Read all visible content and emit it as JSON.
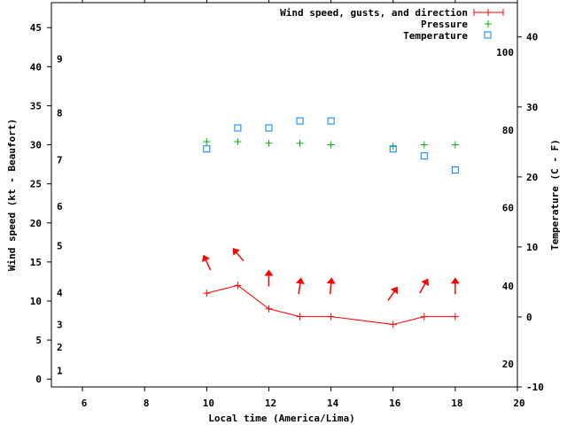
{
  "chart_data": {
    "type": "line",
    "title": "",
    "xlabel": "Local time (America/Lima)",
    "ylabel": "Wind speed (kt - Beaufort)",
    "y2label": "Temperature (C - F)",
    "xlim": [
      5,
      20
    ],
    "ylim": [
      -1,
      48.2
    ],
    "y2lim": [
      -10,
      44.9
    ],
    "grid": false,
    "legend_position": "top-right",
    "x_ticks": [
      6,
      8,
      10,
      12,
      14,
      16,
      18,
      20
    ],
    "y_ticks": [
      0,
      5,
      10,
      15,
      20,
      25,
      30,
      35,
      40,
      45
    ],
    "y2_ticks": [
      -10,
      0,
      10,
      20,
      30,
      40
    ],
    "beaufort_labels": [
      {
        "label": "1",
        "kt": 1.1
      },
      {
        "label": "2",
        "kt": 4.1
      },
      {
        "label": "3",
        "kt": 7.0
      },
      {
        "label": "4",
        "kt": 11.1
      },
      {
        "label": "5",
        "kt": 17.1
      },
      {
        "label": "6",
        "kt": 22.1
      },
      {
        "label": "7",
        "kt": 28.1
      },
      {
        "label": "8",
        "kt": 34.1
      },
      {
        "label": "9",
        "kt": 41.0
      }
    ],
    "fahrenheit_labels": [
      {
        "label": "20",
        "c": -6.7
      },
      {
        "label": "40",
        "c": 4.4
      },
      {
        "label": "60",
        "c": 15.6
      },
      {
        "label": "80",
        "c": 26.7
      },
      {
        "label": "100",
        "c": 37.8
      }
    ],
    "series": [
      {
        "name": "Wind speed, gusts, and direction",
        "color": "#ff0000",
        "axis": "y",
        "x": [
          10,
          11,
          12,
          13,
          14,
          16,
          17,
          18
        ],
        "values": [
          11,
          12,
          9,
          8,
          8,
          7,
          8,
          8
        ],
        "gusts": [
          15,
          16,
          13,
          12,
          12,
          11,
          12,
          12
        ],
        "direction_deg": [
          -25,
          -40,
          0,
          8,
          5,
          35,
          30,
          0
        ]
      },
      {
        "name": "Pressure",
        "color": "#00b000",
        "axis": "y",
        "x": [
          10,
          11,
          12,
          13,
          14,
          16,
          17,
          18
        ],
        "values": [
          30.4,
          30.4,
          30.2,
          30.2,
          30.0,
          29.8,
          30.0,
          30.0
        ]
      },
      {
        "name": "Temperature",
        "color": "#0080ff",
        "axis": "y2",
        "x": [
          10,
          11,
          12,
          13,
          14,
          16,
          17,
          18
        ],
        "values": [
          24,
          27,
          27,
          28,
          28,
          24,
          23,
          21
        ]
      }
    ]
  }
}
